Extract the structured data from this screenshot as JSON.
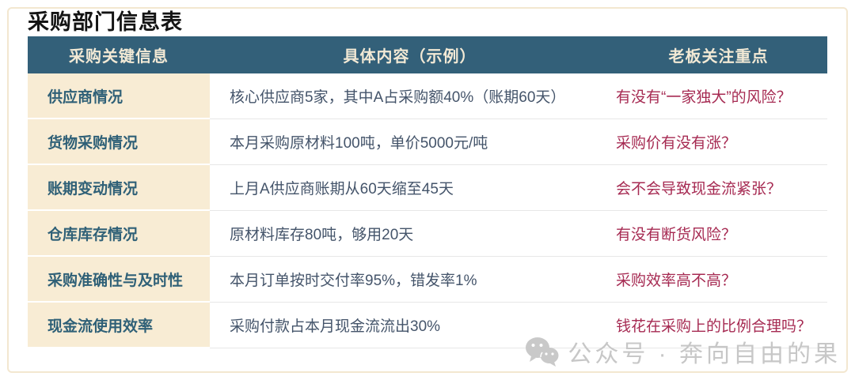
{
  "page": {
    "title": "采购部门信息表",
    "watermark_text": "公众号 · 奔向自由的果"
  },
  "table": {
    "headers": [
      "采购关键信息",
      "具体内容（示例）",
      "老板关注重点"
    ],
    "rows": [
      {
        "key": "供应商情况",
        "content": "核心供应商5家，其中A占采购额40%（账期60天）",
        "focus": "有没有“一家独大”的风险？"
      },
      {
        "key": "货物采购情况",
        "content": "本月采购原材料100吨，单价5000元/吨",
        "focus": "采购价有没有涨？"
      },
      {
        "key": "账期变动情况",
        "content": "上月A供应商账期从60天缩至45天",
        "focus": "会不会导致现金流紧张？"
      },
      {
        "key": "仓库库存情况",
        "content": "原材料库存80吨，够用20天",
        "focus": "有没有断货风险？"
      },
      {
        "key": "采购准确性与及时性",
        "content": "本月订单按时交付率95%，错发率1%",
        "focus": "采购效率高不高？"
      },
      {
        "key": "现金流使用效率",
        "content": "采购付款占本月现金流流出30%",
        "focus": "钱花在采购上的比例合理吗？"
      }
    ]
  },
  "colors": {
    "header_bg": "#336079",
    "header_text": "#f2e9d5",
    "key_cell_bg": "#f8ecd4",
    "key_text": "#2f6077",
    "content_text": "#44546a",
    "focus_text": "#a62a52",
    "frame_border": "#f3e7d0",
    "watermark_text": "#c7c7c7"
  },
  "icons": {
    "wechat": "wechat-icon"
  }
}
